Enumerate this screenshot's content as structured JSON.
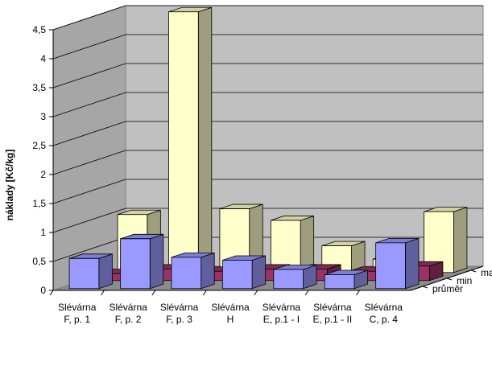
{
  "chart_data": {
    "type": "bar",
    "ylabel": "náklady [Kč/kg]",
    "ylim": [
      0,
      4.5
    ],
    "yticks": [
      "0",
      "0,5",
      "1",
      "1,5",
      "2",
      "2,5",
      "3",
      "3,5",
      "4",
      "4,5"
    ],
    "categories": [
      [
        "Slévárna",
        "F, p. 1"
      ],
      [
        "Slévárna",
        "F, p. 2"
      ],
      [
        "Slévárna",
        "F, p. 3"
      ],
      [
        "Slévárna",
        "H"
      ],
      [
        "Slévárna",
        "E, p.1 - I"
      ],
      [
        "Slévárna",
        "E, p.1 - II"
      ],
      [
        "Slévárna",
        "C, p. 4"
      ]
    ],
    "series": [
      {
        "name": "průměr",
        "values": [
          0.52,
          0.86,
          0.54,
          0.49,
          0.33,
          0.24,
          0.79
        ]
      },
      {
        "name": "min",
        "values": [
          0.12,
          0.2,
          0.16,
          0.2,
          0.2,
          0.16,
          0.25
        ]
      },
      {
        "name": "max",
        "values": [
          1.0,
          4.5,
          1.1,
          0.9,
          0.46,
          0.23,
          1.05
        ]
      }
    ],
    "colors": {
      "průměr": "#9999ff",
      "min": "#993366",
      "max": "#ffffcc"
    },
    "grid": true
  }
}
